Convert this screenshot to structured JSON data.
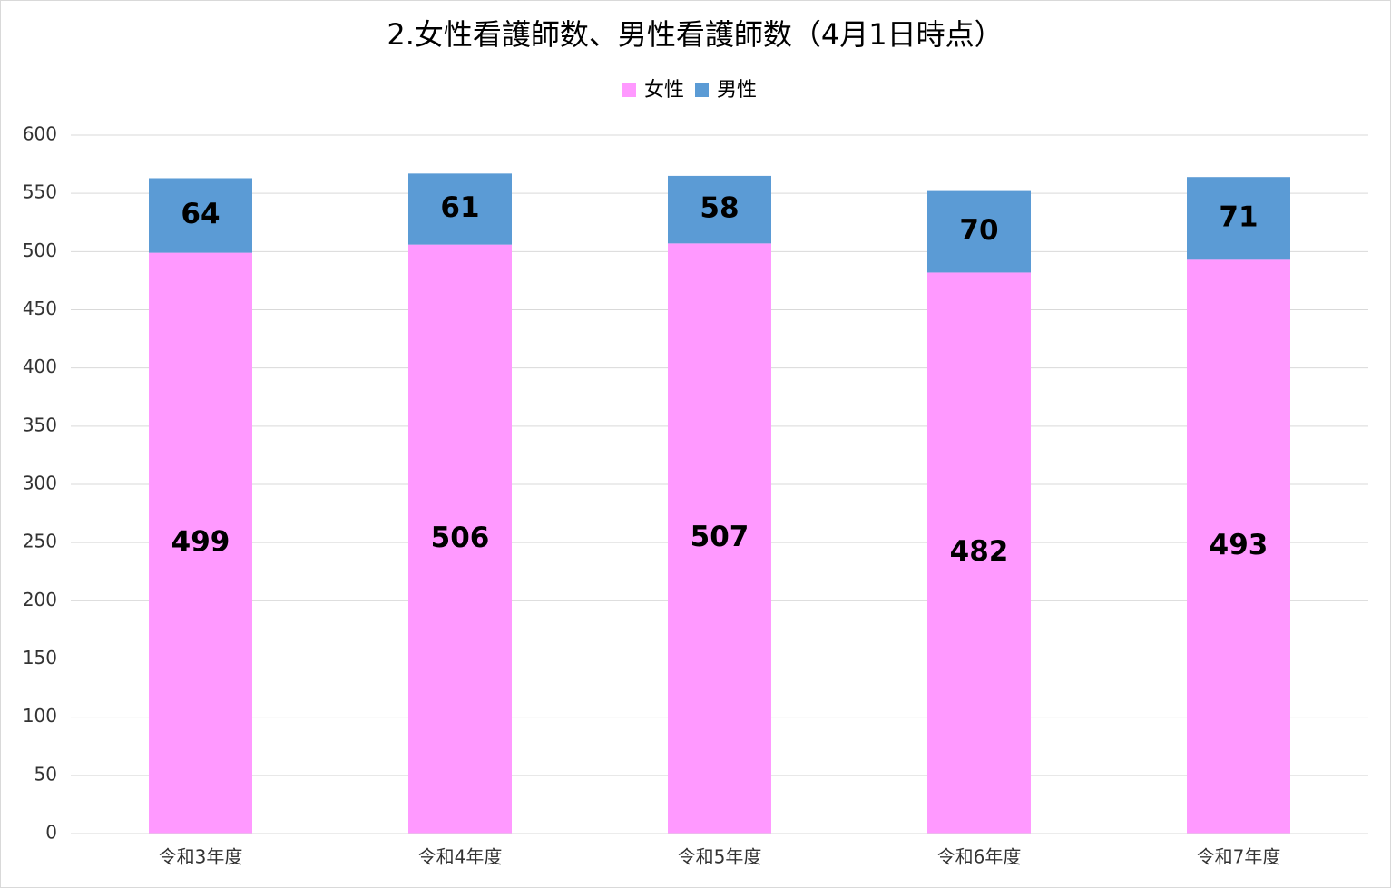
{
  "chart_data": {
    "type": "bar",
    "stacked": true,
    "title": "2.女性看護師数、男性看護師数（4月1日時点）",
    "categories": [
      "令和3年度",
      "令和4年度",
      "令和5年度",
      "令和6年度",
      "令和7年度"
    ],
    "series": [
      {
        "name": "女性",
        "color": "#ff99ff",
        "values": [
          499,
          506,
          507,
          482,
          493
        ]
      },
      {
        "name": "男性",
        "color": "#5b9bd5",
        "values": [
          64,
          61,
          58,
          70,
          71
        ]
      }
    ],
    "ylim": [
      0,
      600
    ],
    "yticks": [
      0,
      50,
      100,
      150,
      200,
      250,
      300,
      350,
      400,
      450,
      500,
      550,
      600
    ],
    "grid": true,
    "legend": "top"
  }
}
